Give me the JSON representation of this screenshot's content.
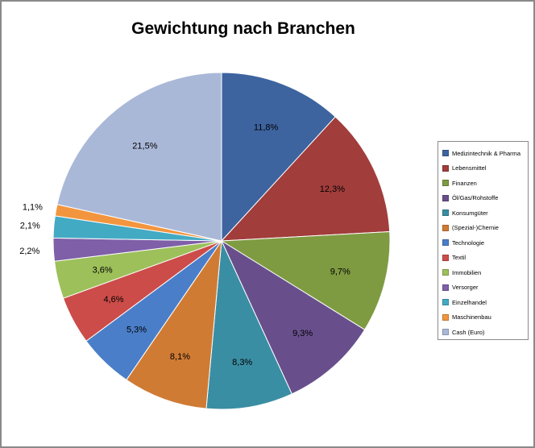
{
  "chart_data": {
    "type": "pie",
    "title": "Gewichtung nach Branchen",
    "legend_position": "right",
    "slices": [
      {
        "name": "Medizintechnik & Pharma",
        "value": 11.8,
        "label": "11,8%",
        "color": "#3e64a0"
      },
      {
        "name": "Lebensmittel",
        "value": 12.3,
        "label": "12,3%",
        "color": "#a13d3b"
      },
      {
        "name": "Finanzen",
        "value": 9.7,
        "label": "9,7%",
        "color": "#7f9b42"
      },
      {
        "name": "Öl/Gas/Rohstoffe",
        "value": 9.3,
        "label": "9,3%",
        "color": "#684f8c"
      },
      {
        "name": "Konsumgüter",
        "value": 8.3,
        "label": "8,3%",
        "color": "#3a8ea3"
      },
      {
        "name": "(Spezial-)Chemie",
        "value": 8.1,
        "label": "8,1%",
        "color": "#d07b34"
      },
      {
        "name": "Technologie",
        "value": 5.3,
        "label": "5,3%",
        "color": "#4a7ec8"
      },
      {
        "name": "Textil",
        "value": 4.6,
        "label": "4,6%",
        "color": "#cc4c49"
      },
      {
        "name": "Immobilien",
        "value": 3.6,
        "label": "3,6%",
        "color": "#9dc05b"
      },
      {
        "name": "Versorger",
        "value": 2.2,
        "label": "2,2%",
        "color": "#7e5fa8"
      },
      {
        "name": "Einzelhandel",
        "value": 2.1,
        "label": "2,1%",
        "color": "#43aac4"
      },
      {
        "name": "Maschinenbau",
        "value": 1.1,
        "label": "1,1%",
        "color": "#f3953e"
      },
      {
        "name": "Cash (Euro)",
        "value": 21.5,
        "label": "21,5%",
        "color": "#aab8d8"
      }
    ]
  }
}
